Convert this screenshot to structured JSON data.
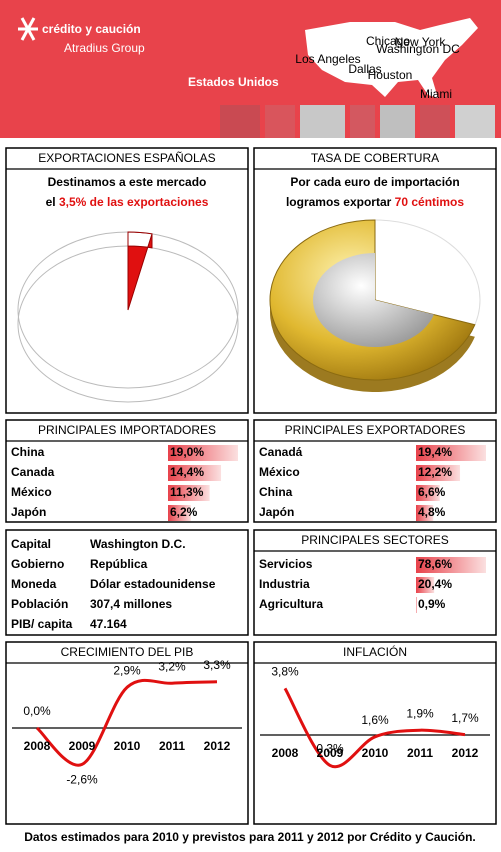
{
  "header": {
    "brand": "crédito y caución",
    "group": "Atradius Group",
    "country": "Estados Unidos",
    "cities": [
      "Chicago",
      "New York",
      "Washington DC",
      "Los Angeles",
      "Dallas",
      "Houston",
      "Miami"
    ]
  },
  "exports": {
    "type": "pie",
    "title": "EXPORTACIONES ESPAÑOLAS",
    "line1": "Destinamos a este mercado",
    "line2_prefix": "el",
    "line2_highlight": "3,5% de las exportaciones",
    "value": 3.5,
    "color": "#e01010"
  },
  "coverage": {
    "type": "coin",
    "title": "TASA DE COBERTURA",
    "line1": "Por cada euro de importación",
    "line2_prefix": "logramos exportar",
    "line2_highlight": "70 céntimos",
    "value": 70
  },
  "importers": {
    "title": "PRINCIPALES IMPORTADORES",
    "categories": [
      "China",
      "Canada",
      "México",
      "Japón"
    ],
    "values": [
      19.0,
      14.4,
      11.3,
      6.2
    ],
    "value_labels": [
      "19,0%",
      "14,4%",
      "11,3%",
      "6,2%"
    ]
  },
  "exporters": {
    "title": "PRINCIPALES EXPORTADORES",
    "categories": [
      "Canadá",
      "México",
      "China",
      "Japón"
    ],
    "values": [
      19.4,
      12.2,
      6.6,
      4.8
    ],
    "value_labels": [
      "19,4%",
      "12,2%",
      "6,6%",
      "4,8%"
    ]
  },
  "facts": {
    "rows": [
      [
        "Capital",
        "Washington D.C."
      ],
      [
        "Gobierno",
        "República"
      ],
      [
        "Moneda",
        "Dólar estadounidense"
      ],
      [
        "Población",
        "307,4 millones"
      ],
      [
        "PIB/ capita",
        "47.164"
      ]
    ]
  },
  "sectors": {
    "title": "PRINCIPALES SECTORES",
    "categories": [
      "Servicios",
      "Industria",
      "Agricultura"
    ],
    "values": [
      78.6,
      20.4,
      0.9
    ],
    "value_labels": [
      "78,6%",
      "20,4%",
      "0,9%"
    ]
  },
  "gdp": {
    "type": "line",
    "title": "CRECIMIENTO DEL PIB",
    "categories": [
      "2008",
      "2009",
      "2010",
      "2011",
      "2012"
    ],
    "values": [
      0.0,
      -2.6,
      2.9,
      3.2,
      3.3
    ],
    "value_labels": [
      "0,0%",
      "-2,6%",
      "2,9%",
      "3,2%",
      "3,3%"
    ],
    "color": "#e01010"
  },
  "inflation": {
    "type": "line",
    "title": "INFLACIÓN",
    "categories": [
      "2008",
      "2009",
      "2010",
      "2011",
      "2012"
    ],
    "values": [
      3.8,
      0.3,
      1.6,
      1.9,
      1.7
    ],
    "value_labels": [
      "3,8%",
      "0,3%",
      "1,6%",
      "1,9%",
      "1,7%"
    ],
    "color": "#e01010"
  },
  "footer": "Datos estimados para 2010 y previstos para 2011  y 2012 por Crédito y Caución."
}
